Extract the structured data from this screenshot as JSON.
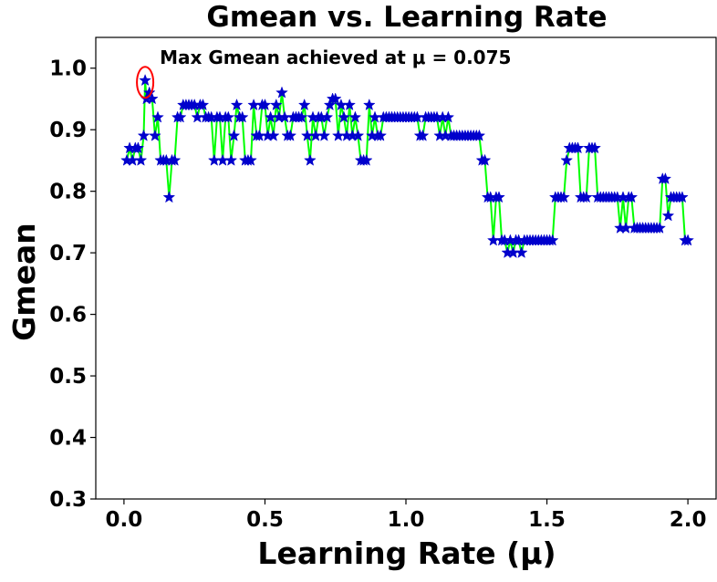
{
  "chart_data": {
    "type": "line",
    "title": "Gmean vs. Learning Rate",
    "xlabel": "Learning Rate (μ)",
    "ylabel": "Gmean",
    "xlim": [
      -0.1,
      2.1
    ],
    "ylim": [
      0.3,
      1.05
    ],
    "xticks": [
      0.0,
      0.5,
      1.0,
      1.5,
      2.0
    ],
    "xtick_labels": [
      "0.0",
      "0.5",
      "1.0",
      "1.5",
      "2.0"
    ],
    "yticks": [
      0.3,
      0.4,
      0.5,
      0.6,
      0.7,
      0.8,
      0.9,
      1.0
    ],
    "ytick_labels": [
      "0.3",
      "0.4",
      "0.5",
      "0.6",
      "0.7",
      "0.8",
      "0.9",
      "1.0"
    ],
    "grid": false,
    "line_color": "#00ff00",
    "marker_color": "#0000cc",
    "marker": "star",
    "annotation": {
      "text": "Max Gmean achieved at μ = 0.075",
      "x": 0.075,
      "y": 0.98,
      "highlight_color": "#ff0000"
    },
    "series": [
      {
        "x": [
          0.01,
          0.02,
          0.03,
          0.04,
          0.05,
          0.06,
          0.07,
          0.075,
          0.08,
          0.09,
          0.1,
          0.11,
          0.12,
          0.13,
          0.14,
          0.15,
          0.16,
          0.17,
          0.18,
          0.19,
          0.2,
          0.21,
          0.22,
          0.23,
          0.24,
          0.25,
          0.26,
          0.27,
          0.28,
          0.29,
          0.3,
          0.31,
          0.32,
          0.33,
          0.34,
          0.35,
          0.36,
          0.37,
          0.38,
          0.39,
          0.4,
          0.41,
          0.42,
          0.43,
          0.44,
          0.45,
          0.46,
          0.47,
          0.48,
          0.49,
          0.5,
          0.51,
          0.52,
          0.53,
          0.54,
          0.55,
          0.56,
          0.57,
          0.58,
          0.59,
          0.6,
          0.61,
          0.62,
          0.63,
          0.64,
          0.65,
          0.66,
          0.67,
          0.68,
          0.69,
          0.7,
          0.71,
          0.72,
          0.73,
          0.74,
          0.75,
          0.76,
          0.77,
          0.78,
          0.79,
          0.8,
          0.81,
          0.82,
          0.83,
          0.84,
          0.85,
          0.86,
          0.87,
          0.88,
          0.89,
          0.9,
          0.91,
          0.92,
          0.93,
          0.94,
          0.95,
          0.96,
          0.97,
          0.98,
          0.99,
          1.0,
          1.01,
          1.02,
          1.03,
          1.04,
          1.05,
          1.06,
          1.07,
          1.08,
          1.09,
          1.1,
          1.11,
          1.12,
          1.13,
          1.14,
          1.15,
          1.16,
          1.17,
          1.18,
          1.19,
          1.2,
          1.21,
          1.22,
          1.23,
          1.24,
          1.25,
          1.26,
          1.27,
          1.28,
          1.29,
          1.3,
          1.31,
          1.32,
          1.33,
          1.34,
          1.35,
          1.36,
          1.37,
          1.38,
          1.39,
          1.4,
          1.41,
          1.42,
          1.43,
          1.44,
          1.45,
          1.46,
          1.47,
          1.48,
          1.49,
          1.5,
          1.51,
          1.52,
          1.53,
          1.54,
          1.55,
          1.56,
          1.57,
          1.58,
          1.59,
          1.6,
          1.61,
          1.62,
          1.63,
          1.64,
          1.65,
          1.66,
          1.67,
          1.68,
          1.69,
          1.7,
          1.71,
          1.72,
          1.73,
          1.74,
          1.75,
          1.76,
          1.77,
          1.78,
          1.79,
          1.8,
          1.81,
          1.82,
          1.83,
          1.84,
          1.85,
          1.86,
          1.87,
          1.88,
          1.89,
          1.9,
          1.91,
          1.92,
          1.93,
          1.94,
          1.95,
          1.96,
          1.97,
          1.98,
          1.99,
          2.0
        ],
        "y": [
          0.85,
          0.87,
          0.85,
          0.87,
          0.87,
          0.85,
          0.89,
          0.98,
          0.95,
          0.96,
          0.95,
          0.89,
          0.92,
          0.85,
          0.85,
          0.85,
          0.79,
          0.85,
          0.85,
          0.92,
          0.92,
          0.94,
          0.94,
          0.94,
          0.94,
          0.94,
          0.92,
          0.94,
          0.94,
          0.92,
          0.92,
          0.92,
          0.85,
          0.92,
          0.92,
          0.85,
          0.92,
          0.92,
          0.85,
          0.89,
          0.94,
          0.92,
          0.92,
          0.85,
          0.85,
          0.85,
          0.94,
          0.89,
          0.89,
          0.94,
          0.94,
          0.89,
          0.92,
          0.89,
          0.94,
          0.92,
          0.96,
          0.92,
          0.89,
          0.89,
          0.92,
          0.92,
          0.92,
          0.92,
          0.94,
          0.89,
          0.85,
          0.92,
          0.89,
          0.92,
          0.92,
          0.89,
          0.92,
          0.94,
          0.95,
          0.95,
          0.89,
          0.94,
          0.92,
          0.89,
          0.94,
          0.89,
          0.92,
          0.89,
          0.85,
          0.85,
          0.85,
          0.94,
          0.89,
          0.92,
          0.89,
          0.89,
          0.92,
          0.92,
          0.92,
          0.92,
          0.92,
          0.92,
          0.92,
          0.92,
          0.92,
          0.92,
          0.92,
          0.92,
          0.92,
          0.89,
          0.89,
          0.92,
          0.92,
          0.92,
          0.92,
          0.92,
          0.89,
          0.92,
          0.89,
          0.92,
          0.89,
          0.89,
          0.89,
          0.89,
          0.89,
          0.89,
          0.89,
          0.89,
          0.89,
          0.89,
          0.89,
          0.85,
          0.85,
          0.79,
          0.79,
          0.72,
          0.79,
          0.79,
          0.72,
          0.72,
          0.7,
          0.72,
          0.7,
          0.72,
          0.72,
          0.7,
          0.72,
          0.72,
          0.72,
          0.72,
          0.72,
          0.72,
          0.72,
          0.72,
          0.72,
          0.72,
          0.72,
          0.79,
          0.79,
          0.79,
          0.79,
          0.85,
          0.87,
          0.87,
          0.87,
          0.87,
          0.79,
          0.79,
          0.79,
          0.87,
          0.87,
          0.87,
          0.79,
          0.79,
          0.79,
          0.79,
          0.79,
          0.79,
          0.79,
          0.79,
          0.74,
          0.79,
          0.74,
          0.79,
          0.79,
          0.74,
          0.74,
          0.74,
          0.74,
          0.74,
          0.74,
          0.74,
          0.74,
          0.74,
          0.74,
          0.82,
          0.82,
          0.76,
          0.79,
          0.79,
          0.79,
          0.79,
          0.79,
          0.72,
          0.72
        ]
      }
    ]
  }
}
